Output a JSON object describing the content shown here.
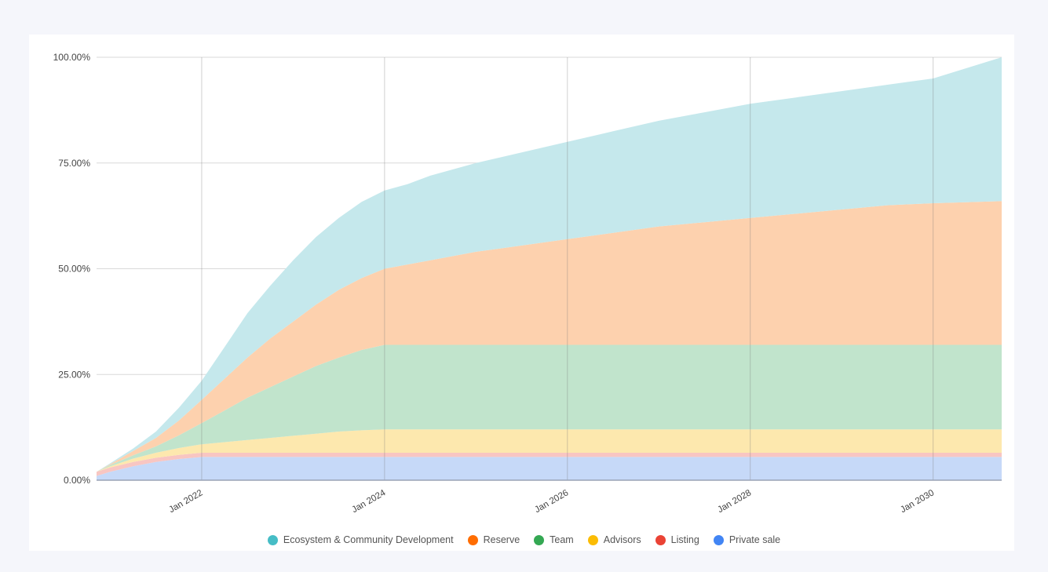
{
  "chart_data": {
    "type": "area",
    "stacked": true,
    "title": "",
    "xlabel": "",
    "ylabel": "",
    "ylim": [
      0,
      100
    ],
    "y_ticks": [
      "0.00%",
      "25.00%",
      "50.00%",
      "75.00%",
      "100.00%"
    ],
    "x_ticks": [
      "Jan 2022",
      "Jan 2024",
      "Jan 2026",
      "Jan 2028",
      "Jan 2030"
    ],
    "x_range": [
      "Nov 2020",
      "Oct 2030"
    ],
    "grid": true,
    "legend_position": "bottom",
    "x": [
      2020.85,
      2021.0,
      2021.25,
      2021.5,
      2021.75,
      2022.0,
      2022.25,
      2022.5,
      2022.75,
      2023.0,
      2023.25,
      2023.5,
      2023.75,
      2024.0,
      2024.25,
      2024.5,
      2025.0,
      2025.5,
      2026.0,
      2026.5,
      2027.0,
      2027.5,
      2028.0,
      2028.5,
      2029.0,
      2029.5,
      2030.0,
      2030.75
    ],
    "series": [
      {
        "name": "Private sale",
        "color": "#4285f4",
        "values": [
          1.0,
          2.0,
          3.3,
          4.3,
          5.0,
          5.5,
          5.5,
          5.5,
          5.5,
          5.5,
          5.5,
          5.5,
          5.5,
          5.5,
          5.5,
          5.5,
          5.5,
          5.5,
          5.5,
          5.5,
          5.5,
          5.5,
          5.5,
          5.5,
          5.5,
          5.5,
          5.5,
          5.5
        ]
      },
      {
        "name": "Listing",
        "color": "#ea4335",
        "values": [
          1.0,
          1.0,
          1.0,
          1.0,
          1.0,
          1.0,
          1.0,
          1.0,
          1.0,
          1.0,
          1.0,
          1.0,
          1.0,
          1.0,
          1.0,
          1.0,
          1.0,
          1.0,
          1.0,
          1.0,
          1.0,
          1.0,
          1.0,
          1.0,
          1.0,
          1.0,
          1.0,
          1.0
        ]
      },
      {
        "name": "Advisors",
        "color": "#fbbc04",
        "values": [
          0.0,
          0.3,
          0.8,
          1.2,
          1.6,
          2.0,
          2.5,
          3.0,
          3.5,
          4.0,
          4.5,
          5.0,
          5.3,
          5.5,
          5.5,
          5.5,
          5.5,
          5.5,
          5.5,
          5.5,
          5.5,
          5.5,
          5.5,
          5.5,
          5.5,
          5.5,
          5.5,
          5.5
        ]
      },
      {
        "name": "Team",
        "color": "#34a853",
        "values": [
          0.0,
          0.3,
          0.8,
          1.5,
          3.0,
          5.0,
          7.5,
          10.0,
          12.0,
          14.0,
          16.0,
          17.5,
          19.0,
          20.0,
          20.0,
          20.0,
          20.0,
          20.0,
          20.0,
          20.0,
          20.0,
          20.0,
          20.0,
          20.0,
          20.0,
          20.0,
          20.0,
          20.0
        ]
      },
      {
        "name": "Reserve",
        "color": "#ff6d01",
        "values": [
          0.0,
          0.2,
          1.0,
          2.0,
          3.5,
          5.5,
          7.5,
          9.5,
          11.5,
          13.0,
          14.5,
          16.0,
          17.0,
          18.0,
          19.0,
          20.0,
          22.0,
          23.5,
          25.0,
          26.5,
          28.0,
          29.0,
          30.0,
          31.0,
          32.0,
          33.0,
          33.5,
          34.0
        ]
      },
      {
        "name": "Ecosystem & Community Development",
        "color": "#46bdc6",
        "values": [
          0.0,
          0.2,
          0.6,
          1.5,
          3.0,
          4.5,
          7.5,
          10.5,
          12.5,
          14.5,
          16.0,
          17.0,
          18.0,
          18.5,
          19.0,
          20.0,
          21.0,
          22.0,
          23.0,
          24.0,
          25.0,
          26.0,
          27.0,
          27.5,
          28.0,
          28.5,
          29.5,
          34.0
        ]
      }
    ]
  },
  "legend": [
    {
      "label": "Ecosystem & Community Development",
      "color": "#46bdc6"
    },
    {
      "label": "Reserve",
      "color": "#ff6d01"
    },
    {
      "label": "Team",
      "color": "#34a853"
    },
    {
      "label": "Advisors",
      "color": "#fbbc04"
    },
    {
      "label": "Listing",
      "color": "#ea4335"
    },
    {
      "label": "Private sale",
      "color": "#4285f4"
    }
  ],
  "fills": {
    "Private sale": "#c6d9f8",
    "Listing": "#f8c6c2",
    "Advisors": "#fde8ae",
    "Team": "#c1e4cc",
    "Reserve": "#fdd1ae",
    "Ecosystem & Community Development": "#c5e8ec"
  }
}
